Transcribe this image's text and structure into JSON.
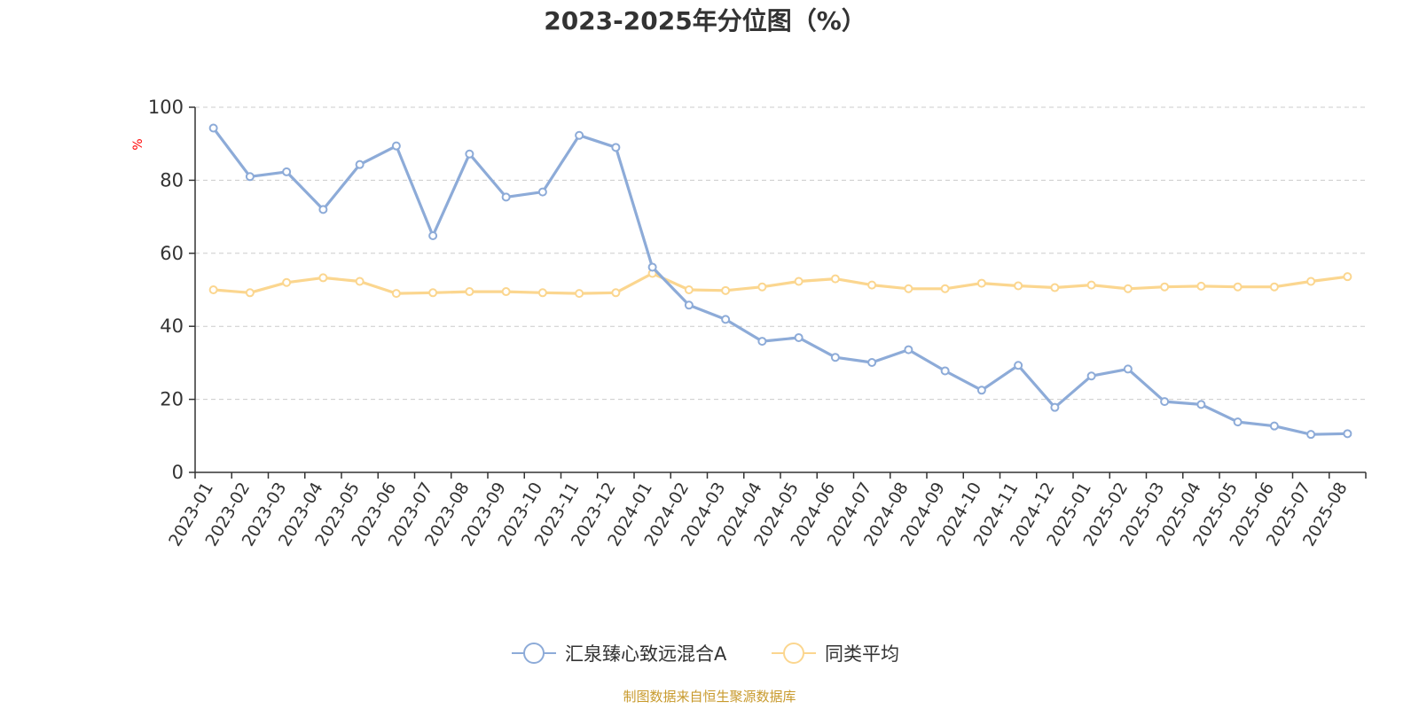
{
  "chart_data": {
    "type": "line",
    "title": "2023-2025年分位图（%）",
    "ylabel": "%",
    "xlabel": "",
    "ylim": [
      0,
      100
    ],
    "yticks": [
      0,
      20,
      40,
      60,
      80,
      100
    ],
    "grid": true,
    "legend_position": "bottom",
    "categories": [
      "2023-01",
      "2023-02",
      "2023-03",
      "2023-04",
      "2023-05",
      "2023-06",
      "2023-07",
      "2023-08",
      "2023-09",
      "2023-10",
      "2023-11",
      "2023-12",
      "2024-01",
      "2024-02",
      "2024-03",
      "2024-04",
      "2024-05",
      "2024-06",
      "2024-07",
      "2024-08",
      "2024-09",
      "2024-10",
      "2024-11",
      "2024-12",
      "2025-01",
      "2025-02",
      "2025-03",
      "2025-04",
      "2025-05",
      "2025-06",
      "2025-07",
      "2025-08"
    ],
    "series": [
      {
        "name": "汇泉臻心致远混合A",
        "color": "#8dabd8",
        "values": [
          94.3,
          81.0,
          82.3,
          72.0,
          84.3,
          89.4,
          64.8,
          87.2,
          75.4,
          76.8,
          92.3,
          89.0,
          56.2,
          45.8,
          41.9,
          35.9,
          36.9,
          31.5,
          30.1,
          33.6,
          27.8,
          22.5,
          29.3,
          17.8,
          26.4,
          28.3,
          19.4,
          18.6,
          13.8,
          12.7,
          10.4,
          10.6
        ]
      },
      {
        "name": "同类平均",
        "color": "#fbd68f",
        "values": [
          50.0,
          49.2,
          52.0,
          53.3,
          52.3,
          49.0,
          49.2,
          49.5,
          49.5,
          49.2,
          49.0,
          49.2,
          54.5,
          50.0,
          49.8,
          50.8,
          52.3,
          53.0,
          51.3,
          50.3,
          50.3,
          51.8,
          51.1,
          50.6,
          51.3,
          50.3,
          50.8,
          51.0,
          50.8,
          50.8,
          52.3,
          53.6
        ]
      }
    ]
  },
  "footer": {
    "source_text": "制图数据来自恒生聚源数据库"
  }
}
